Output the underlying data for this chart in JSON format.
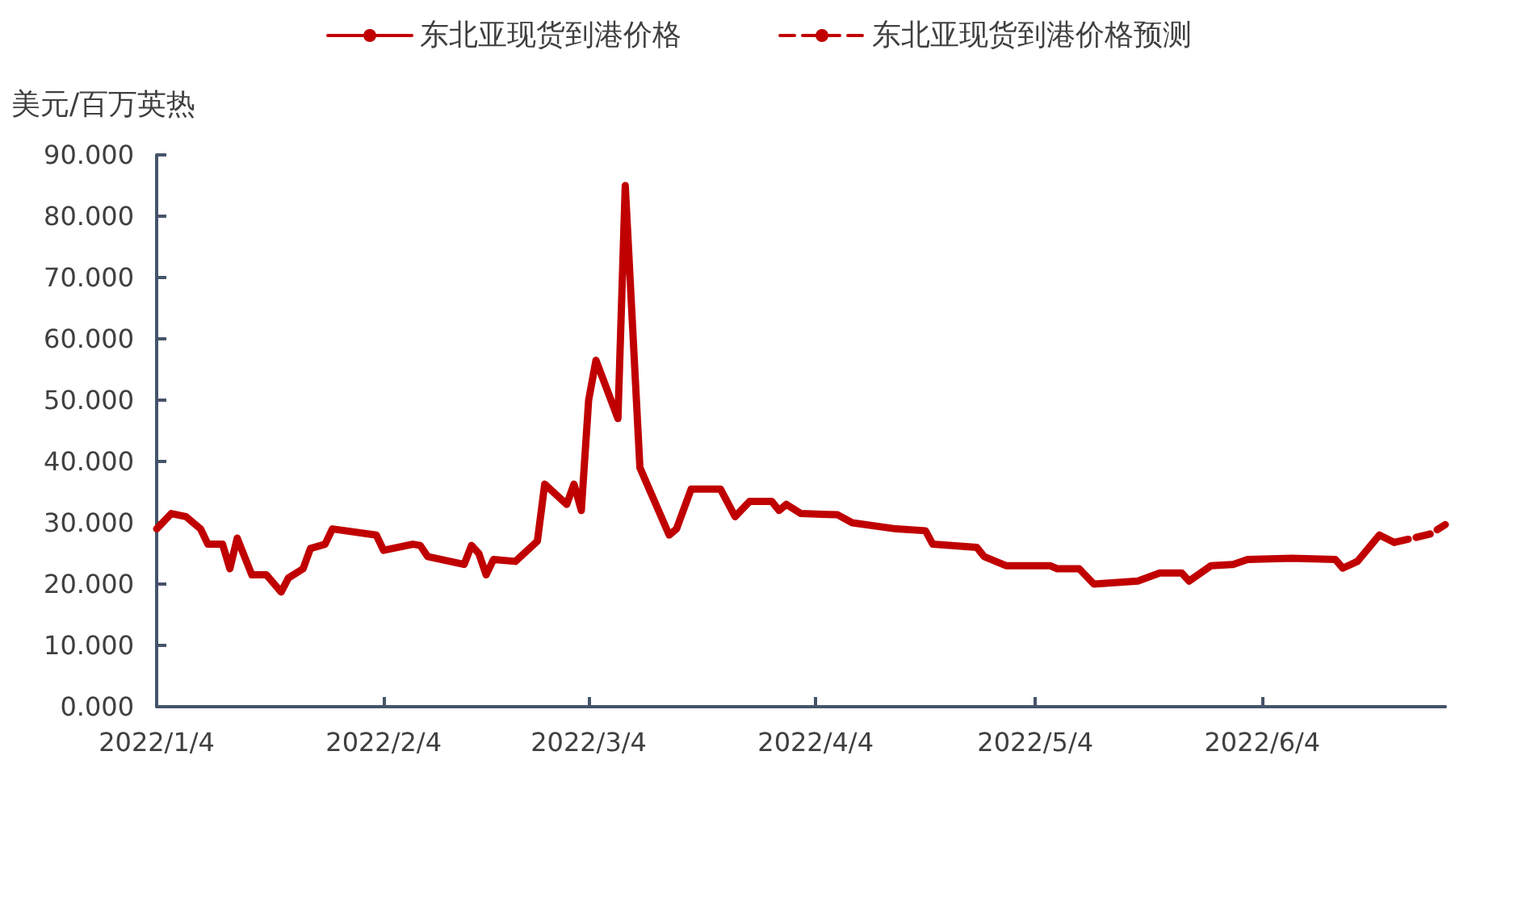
{
  "chart_data": {
    "type": "line",
    "ylabel": "美元/百万英热",
    "legend": "top",
    "grid": false,
    "marker": "none",
    "xlim": [
      "2022-01-04",
      "2022-06-29"
    ],
    "xticks": [
      {
        "value": "2022-01-04",
        "label": "2022/1/4"
      },
      {
        "value": "2022-02-04",
        "label": "2022/2/4"
      },
      {
        "value": "2022-03-04",
        "label": "2022/3/4"
      },
      {
        "value": "2022-04-04",
        "label": "2022/4/4"
      },
      {
        "value": "2022-05-04",
        "label": "2022/5/4"
      },
      {
        "value": "2022-06-04",
        "label": "2022/6/4"
      }
    ],
    "ylim": [
      0,
      90
    ],
    "yticks": [
      {
        "value": 0,
        "label": "0.000"
      },
      {
        "value": 10,
        "label": "10.000"
      },
      {
        "value": 20,
        "label": "20.000"
      },
      {
        "value": 30,
        "label": "30.000"
      },
      {
        "value": 40,
        "label": "40.000"
      },
      {
        "value": 50,
        "label": "50.000"
      },
      {
        "value": 60,
        "label": "60.000"
      },
      {
        "value": 70,
        "label": "70.000"
      },
      {
        "value": 80,
        "label": "80.000"
      },
      {
        "value": 90,
        "label": "90.000"
      }
    ],
    "series": [
      {
        "name": "东北亚现货到港价格",
        "color": "#c00000",
        "line_style": "solid",
        "x": [
          "2022-01-04",
          "2022-01-06",
          "2022-01-08",
          "2022-01-10",
          "2022-01-11",
          "2022-01-13",
          "2022-01-14",
          "2022-01-15",
          "2022-01-16",
          "2022-01-17",
          "2022-01-19",
          "2022-01-21",
          "2022-01-22",
          "2022-01-24",
          "2022-01-25",
          "2022-01-27",
          "2022-01-28",
          "2022-02-03",
          "2022-02-04",
          "2022-02-08",
          "2022-02-09",
          "2022-02-10",
          "2022-02-15",
          "2022-02-16",
          "2022-02-17",
          "2022-02-18",
          "2022-02-19",
          "2022-02-22",
          "2022-02-25",
          "2022-02-26",
          "2022-03-01",
          "2022-03-02",
          "2022-03-03",
          "2022-03-04",
          "2022-03-05",
          "2022-03-08",
          "2022-03-09",
          "2022-03-11",
          "2022-03-15",
          "2022-03-16",
          "2022-03-18",
          "2022-03-22",
          "2022-03-24",
          "2022-03-26",
          "2022-03-29",
          "2022-03-30",
          "2022-03-31",
          "2022-04-02",
          "2022-04-07",
          "2022-04-09",
          "2022-04-15",
          "2022-04-19",
          "2022-04-20",
          "2022-04-26",
          "2022-04-27",
          "2022-04-30",
          "2022-05-06",
          "2022-05-07",
          "2022-05-10",
          "2022-05-12",
          "2022-05-18",
          "2022-05-21",
          "2022-05-24",
          "2022-05-25",
          "2022-05-28",
          "2022-05-31",
          "2022-06-02",
          "2022-06-08",
          "2022-06-14",
          "2022-06-15",
          "2022-06-17",
          "2022-06-20",
          "2022-06-22"
        ],
        "values": [
          29,
          31.5,
          31,
          29,
          26.5,
          26.5,
          22.5,
          27.5,
          24.5,
          21.5,
          21.5,
          18.7,
          21,
          22.5,
          25.8,
          26.5,
          29,
          28,
          25.5,
          26.5,
          26.3,
          24.5,
          23.2,
          26.3,
          25,
          21.5,
          24,
          23.7,
          27,
          36.3,
          33,
          36.3,
          32,
          50,
          56.5,
          47,
          85,
          39,
          28,
          29,
          35.5,
          35.5,
          31,
          33.5,
          33.5,
          32,
          33,
          31.5,
          31.3,
          30,
          29,
          28.7,
          26.5,
          26,
          24.5,
          23,
          23,
          22.5,
          22.5,
          20,
          20.5,
          21.8,
          21.8,
          20.5,
          23,
          23.2,
          24,
          24.2,
          24,
          22.6,
          23.7,
          28,
          26.8
        ]
      },
      {
        "name": "东北亚现货到港价格预测",
        "color": "#c00000",
        "line_style": "dashed",
        "x": [
          "2022-06-22",
          "2022-06-25",
          "2022-06-27",
          "2022-06-29"
        ],
        "values": [
          26.8,
          27.6,
          28.2,
          29.7
        ]
      }
    ]
  }
}
